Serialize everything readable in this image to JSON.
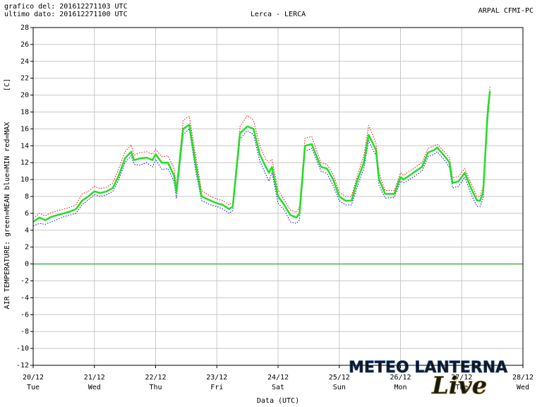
{
  "chart_data": {
    "type": "line",
    "header_left": [
      "grafico del: 201612271103 UTC",
      "ultimo dato: 201612271100 UTC"
    ],
    "title": "Lerca - LERCA",
    "source": "ARPAL CFMI-PC",
    "y_label": "AIR TEMPERATURE: green=MEAN  blue=MIN  red=MAX",
    "y_unit": "[C]",
    "x_label": "Data (UTC)",
    "watermark": [
      "METEO LANTERNA",
      "Live"
    ],
    "grid": true,
    "reference_line": {
      "value": 0,
      "color": "#00a000"
    },
    "xlim": [
      0,
      8
    ],
    "xticks": [
      {
        "value": 0,
        "label": "20/12"
      },
      {
        "value": 1,
        "label": "21/12"
      },
      {
        "value": 2,
        "label": "22/12"
      },
      {
        "value": 3,
        "label": "23/12"
      },
      {
        "value": 4,
        "label": "24/12"
      },
      {
        "value": 5,
        "label": "25/12"
      },
      {
        "value": 6,
        "label": "26/12"
      },
      {
        "value": 7,
        "label": "27/12"
      },
      {
        "value": 8,
        "label": "28/12"
      }
    ],
    "xtick_weekdays": [
      "Tue",
      "Wed",
      "Thu",
      "Fri",
      "Sat",
      "Sun",
      "Mon",
      "Tue",
      "Wed"
    ],
    "ylim": [
      -12,
      28
    ],
    "yticks": [
      -12,
      -10,
      -8,
      -6,
      -4,
      -2,
      0,
      2,
      4,
      6,
      8,
      10,
      12,
      14,
      16,
      18,
      20,
      22,
      24,
      26,
      28
    ],
    "x": [
      0,
      0.1,
      0.2,
      0.3,
      0.4,
      0.5,
      0.6,
      0.7,
      0.8,
      0.9,
      1.0,
      1.1,
      1.2,
      1.3,
      1.4,
      1.5,
      1.6,
      1.65,
      1.75,
      1.85,
      1.95,
      2.0,
      2.1,
      2.2,
      2.3,
      2.34,
      2.45,
      2.55,
      2.65,
      2.75,
      2.9,
      3.0,
      3.1,
      3.2,
      3.26,
      3.38,
      3.5,
      3.6,
      3.7,
      3.8,
      3.85,
      3.9,
      4.0,
      4.1,
      4.2,
      4.3,
      4.35,
      4.44,
      4.55,
      4.7,
      4.8,
      4.9,
      5.0,
      5.1,
      5.2,
      5.3,
      5.4,
      5.48,
      5.6,
      5.65,
      5.75,
      5.9,
      6.0,
      6.05,
      6.15,
      6.25,
      6.35,
      6.45,
      6.55,
      6.6,
      6.75,
      6.8,
      6.85,
      6.95,
      7.05,
      7.15,
      7.25,
      7.3,
      7.35,
      7.42,
      7.46
    ],
    "series": [
      {
        "name": "MAX",
        "color": "#ff0000",
        "dashed": true,
        "values": [
          5.4,
          6.0,
          5.7,
          6.1,
          6.3,
          6.5,
          6.7,
          7.0,
          8.3,
          8.6,
          9.2,
          8.9,
          9.1,
          9.6,
          11.3,
          13.3,
          14.1,
          12.9,
          13.2,
          13.3,
          13.0,
          13.6,
          12.7,
          12.8,
          11.4,
          9.2,
          17.0,
          17.5,
          13.0,
          8.7,
          8.0,
          7.7,
          7.5,
          7.0,
          7.3,
          16.3,
          17.6,
          17.0,
          14.0,
          12.4,
          12.0,
          12.4,
          8.8,
          7.6,
          6.4,
          6.1,
          6.8,
          14.9,
          15.1,
          12.0,
          11.8,
          10.6,
          8.5,
          8.0,
          8.0,
          10.6,
          12.8,
          16.4,
          14.3,
          10.7,
          8.7,
          8.7,
          10.8,
          10.5,
          11.0,
          11.5,
          12.0,
          13.7,
          14.0,
          14.2,
          13.0,
          12.6,
          10.2,
          10.4,
          11.3,
          9.6,
          8.0,
          8.0,
          9.2,
          18.5,
          21.0
        ]
      },
      {
        "name": "MIN",
        "color": "#0000ff",
        "dashed": true,
        "values": [
          4.5,
          4.8,
          4.7,
          5.0,
          5.3,
          5.6,
          5.8,
          6.0,
          7.0,
          7.6,
          8.2,
          8.0,
          8.2,
          8.6,
          10.0,
          12.0,
          12.8,
          11.8,
          11.7,
          12.0,
          11.5,
          12.4,
          11.2,
          11.3,
          9.8,
          7.8,
          15.3,
          16.0,
          11.2,
          7.5,
          7.0,
          6.8,
          6.5,
          6.0,
          6.3,
          14.8,
          15.8,
          15.3,
          12.2,
          10.6,
          9.8,
          10.8,
          7.2,
          6.4,
          5.0,
          4.8,
          5.2,
          13.3,
          13.7,
          11.0,
          10.7,
          9.3,
          7.5,
          7.0,
          7.0,
          9.3,
          11.3,
          14.6,
          12.8,
          9.3,
          7.8,
          7.9,
          9.8,
          9.6,
          10.0,
          10.5,
          11.0,
          12.7,
          13.0,
          13.3,
          12.0,
          11.4,
          9.0,
          9.2,
          10.3,
          8.3,
          6.8,
          6.8,
          7.8,
          16.5,
          20.0
        ]
      },
      {
        "name": "MEAN",
        "color": "#22e022",
        "dashed": false,
        "values": [
          5.0,
          5.5,
          5.2,
          5.6,
          5.8,
          6.0,
          6.2,
          6.5,
          7.5,
          8.0,
          8.6,
          8.4,
          8.6,
          9.0,
          10.5,
          12.5,
          13.3,
          12.3,
          12.5,
          12.6,
          12.3,
          13.0,
          12.0,
          12.0,
          10.5,
          8.5,
          16.0,
          16.5,
          12.0,
          8.0,
          7.5,
          7.2,
          7.0,
          6.5,
          6.8,
          15.5,
          16.3,
          16.0,
          13.0,
          11.5,
          10.8,
          11.5,
          8.0,
          7.0,
          5.8,
          5.5,
          6.0,
          14.0,
          14.2,
          11.5,
          11.3,
          10.0,
          8.0,
          7.5,
          7.5,
          10.0,
          12.0,
          15.3,
          13.5,
          10.0,
          8.3,
          8.3,
          10.3,
          10.0,
          10.5,
          11.0,
          11.5,
          13.2,
          13.5,
          13.8,
          12.5,
          12.0,
          9.6,
          9.8,
          10.8,
          9.0,
          7.5,
          7.5,
          8.5,
          17.5,
          20.5
        ]
      }
    ]
  }
}
